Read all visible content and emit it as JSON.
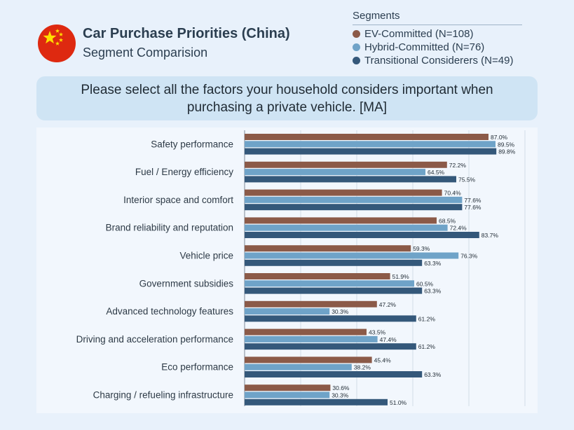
{
  "header": {
    "title": "Car Purchase Priorities (China)",
    "subtitle": "Segment Comparision",
    "question": "Please select all the factors your household considers important when purchasing a private vehicle. [MA]"
  },
  "legend": {
    "title": "Segments",
    "items": [
      {
        "label": "EV-Committed (N=108)",
        "color": "#8b5a48"
      },
      {
        "label": "Hybrid-Committed (N=76)",
        "color": "#6fa3c8"
      },
      {
        "label": "Transitional Considerers (N=49)",
        "color": "#34587a"
      }
    ]
  },
  "colors": {
    "ev": "#8b5a48",
    "hybrid": "#6fa3c8",
    "transitional": "#34587a",
    "flag_red": "#de2910",
    "flag_star": "#ffde00"
  },
  "chart_data": {
    "type": "bar",
    "orientation": "horizontal",
    "title": "Car Purchase Priorities (China)",
    "xlim": [
      0,
      100
    ],
    "value_suffix": "%",
    "categories": [
      "Safety performance",
      "Fuel / Energy efficiency",
      "Interior space and comfort",
      "Brand reliability and reputation",
      "Vehicle price",
      "Government subsidies",
      "Advanced technology features",
      "Driving and acceleration performance",
      "Eco performance",
      "Charging / refueling infrastructure"
    ],
    "series": [
      {
        "name": "EV-Committed (N=108)",
        "color": "#8b5a48",
        "values": [
          87.0,
          72.2,
          70.4,
          68.5,
          59.3,
          51.9,
          47.2,
          43.5,
          45.4,
          30.6
        ]
      },
      {
        "name": "Hybrid-Committed (N=76)",
        "color": "#6fa3c8",
        "values": [
          89.5,
          64.5,
          77.6,
          72.4,
          76.3,
          60.5,
          30.3,
          47.4,
          38.2,
          30.3
        ]
      },
      {
        "name": "Transitional Considerers (N=49)",
        "color": "#34587a",
        "values": [
          89.8,
          75.5,
          77.6,
          83.7,
          63.3,
          63.3,
          61.2,
          61.2,
          63.3,
          51.0
        ]
      }
    ]
  }
}
